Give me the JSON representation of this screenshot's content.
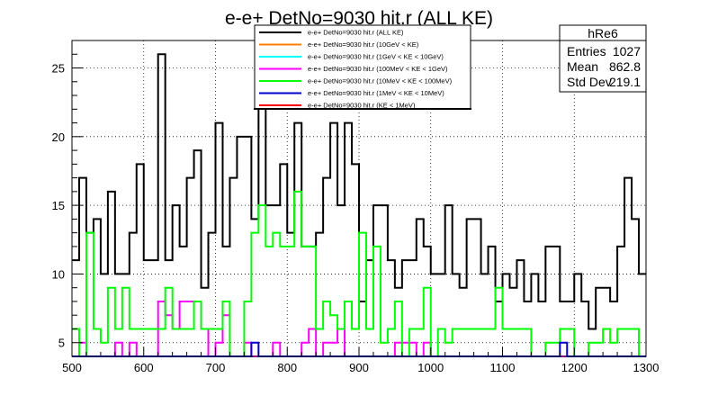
{
  "title": "e-e+ DetNo=9030 hit.r (ALL KE)",
  "stats": {
    "name": "hRe6",
    "rows": [
      {
        "label": "Entries",
        "value": "1027"
      },
      {
        "label": "Mean",
        "value": "862.8"
      },
      {
        "label": "Std Dev",
        "value": "219.1"
      }
    ]
  },
  "chart_data": {
    "type": "histogram-step",
    "xlim": [
      500,
      1300
    ],
    "ylim": [
      4,
      27
    ],
    "bin_width": 10,
    "x_ticks": [
      500,
      600,
      700,
      800,
      900,
      1000,
      1100,
      1200,
      1300
    ],
    "y_ticks": [
      5,
      10,
      15,
      20,
      25
    ],
    "grid": true,
    "legend_position": "top-center",
    "series": [
      {
        "name": "e-e+ DetNo=9030 hit.r (ALL KE)",
        "color": "#000000",
        "values": [
          11,
          17,
          13,
          14,
          10,
          16,
          10,
          10,
          13,
          18,
          11,
          11,
          26,
          11,
          15,
          12,
          17,
          19,
          9,
          13,
          21,
          12,
          17,
          20,
          20,
          14,
          27,
          15,
          15,
          18,
          13,
          21,
          12,
          12,
          13,
          17,
          21,
          15,
          21,
          18,
          8,
          11,
          15,
          15,
          11,
          9,
          11,
          11,
          14,
          12,
          10,
          10,
          15,
          10,
          9,
          14,
          14,
          10,
          12,
          8,
          10,
          9,
          11,
          8,
          10,
          8,
          12,
          12,
          8,
          8,
          10,
          8,
          6,
          9,
          9,
          8,
          12,
          17,
          14,
          10
        ]
      },
      {
        "name": "e-e+ DetNo=9030 hit.r (10GeV < KE)",
        "color": "#ff8000",
        "values": []
      },
      {
        "name": "e-e+ DetNo=9030 hit.r (1GeV < KE < 10GeV)",
        "color": "#00ffff",
        "values": []
      },
      {
        "name": "e-e+ DetNo=9030 hit.r (100MeV < KE < 1GeV)",
        "color": "#ff00ff",
        "values": [
          4,
          5,
          4,
          4,
          4,
          4,
          5,
          4,
          5,
          4,
          4,
          4,
          8,
          7,
          6,
          8,
          8,
          8,
          6,
          4,
          5,
          7,
          4,
          4,
          5,
          4,
          4,
          4,
          5,
          4,
          4,
          4,
          5,
          6,
          4,
          5,
          5,
          6,
          4,
          4,
          4,
          4,
          4,
          4,
          4,
          5,
          5,
          5,
          4,
          5,
          4,
          4,
          4,
          4,
          4,
          4,
          4,
          4,
          4,
          4,
          4,
          4,
          4,
          4,
          4,
          4,
          4,
          4,
          4,
          4,
          4,
          4,
          4,
          4,
          4,
          4,
          4,
          4,
          4,
          4
        ]
      },
      {
        "name": "e-e+ DetNo=9030 hit.r (10MeV < KE < 100MeV)",
        "color": "#00ff00",
        "values": [
          6,
          4,
          13,
          6,
          5,
          9,
          6,
          9,
          6,
          6,
          6,
          6,
          6,
          9,
          6,
          6,
          6,
          8,
          6,
          6,
          6,
          8,
          4,
          4,
          8,
          13,
          15,
          12,
          13,
          12,
          12,
          16,
          12,
          12,
          6,
          8,
          7,
          6,
          8,
          6,
          13,
          6,
          12,
          5,
          6,
          8,
          4,
          6,
          6,
          9,
          4,
          6,
          5,
          6,
          6,
          6,
          6,
          6,
          6,
          9,
          6,
          6,
          6,
          6,
          4,
          4,
          5,
          5,
          6,
          6,
          4,
          4,
          5,
          5,
          6,
          5,
          6,
          6,
          6,
          4
        ]
      },
      {
        "name": "e-e+ DetNo=9030 hit.r (1MeV < KE < 10MeV)",
        "color": "#0000cc",
        "values": [
          4,
          4,
          4,
          4,
          4,
          4,
          4,
          4,
          4,
          4,
          4,
          4,
          4,
          4,
          4,
          4,
          4,
          4,
          4,
          4,
          4,
          4,
          4,
          4,
          4,
          5,
          4,
          4,
          4,
          4,
          4,
          4,
          4,
          4,
          4,
          4,
          4,
          4,
          4,
          4,
          4,
          4,
          4,
          4,
          4,
          4,
          4,
          4,
          4,
          4,
          4,
          4,
          4,
          4,
          4,
          4,
          4,
          4,
          4,
          4,
          4,
          4,
          4,
          4,
          4,
          4,
          4,
          4,
          5,
          4,
          4,
          4,
          4,
          4,
          4,
          4,
          4,
          4,
          4,
          4
        ]
      },
      {
        "name": "e-e+ DetNo=9030 hit.r (KE < 1MeV)",
        "color": "#ff0000",
        "values": []
      }
    ]
  }
}
